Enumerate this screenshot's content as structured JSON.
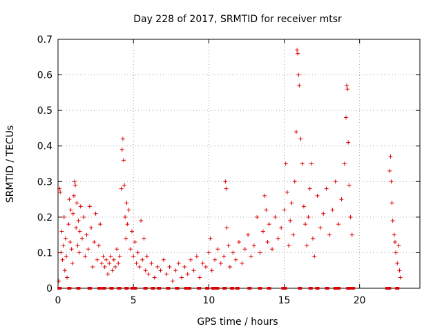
{
  "chart_data": {
    "type": "scatter",
    "title": "Day 228 of 2017, SRMTID for receiver mtsr",
    "xlabel": "GPS time / hours",
    "ylabel": "SRMTID / TECUs",
    "xlim": [
      0,
      24
    ],
    "ylim": [
      0,
      0.7
    ],
    "xticks": [
      0,
      5,
      10,
      15,
      20
    ],
    "yticks": [
      0,
      0.1,
      0.2,
      0.3,
      0.4,
      0.5,
      0.6,
      0.7
    ],
    "grid": true,
    "marker": "+",
    "color": "#dd0000",
    "series": [
      {
        "name": "SRMTID",
        "points": [
          [
            0.05,
            0.02
          ],
          [
            0.1,
            0.28
          ],
          [
            0.15,
            0.27
          ],
          [
            0.2,
            0.1
          ],
          [
            0.25,
            0.16
          ],
          [
            0.3,
            0.08
          ],
          [
            0.35,
            0.12
          ],
          [
            0.4,
            0.2
          ],
          [
            0.45,
            0.05
          ],
          [
            0.5,
            0.14
          ],
          [
            0.55,
            0.09
          ],
          [
            0.6,
            0.03
          ],
          [
            0.7,
            0.18
          ],
          [
            0.75,
            0.25
          ],
          [
            0.8,
            0.13
          ],
          [
            0.85,
            0.22
          ],
          [
            0.9,
            0.11
          ],
          [
            0.95,
            0.07
          ],
          [
            1.0,
            0.21
          ],
          [
            1.05,
            0.26
          ],
          [
            1.1,
            0.3
          ],
          [
            1.15,
            0.29
          ],
          [
            1.2,
            0.17
          ],
          [
            1.25,
            0.24
          ],
          [
            1.3,
            0.12
          ],
          [
            1.35,
            0.19
          ],
          [
            1.4,
            0.1
          ],
          [
            1.45,
            0.16
          ],
          [
            1.5,
            0.23
          ],
          [
            1.6,
            0.14
          ],
          [
            1.7,
            0.2
          ],
          [
            1.8,
            0.09
          ],
          [
            1.9,
            0.15
          ],
          [
            2.0,
            0.11
          ],
          [
            2.1,
            0.23
          ],
          [
            2.2,
            0.17
          ],
          [
            2.3,
            0.06
          ],
          [
            2.4,
            0.13
          ],
          [
            2.5,
            0.21
          ],
          [
            2.6,
            0.08
          ],
          [
            2.7,
            0.12
          ],
          [
            2.8,
            0.18
          ],
          [
            2.9,
            0.07
          ],
          [
            3.0,
            0.09
          ],
          [
            3.1,
            0.06
          ],
          [
            3.2,
            0.08
          ],
          [
            3.3,
            0.04
          ],
          [
            3.4,
            0.07
          ],
          [
            3.5,
            0.09
          ],
          [
            3.6,
            0.05
          ],
          [
            3.7,
            0.08
          ],
          [
            3.8,
            0.06
          ],
          [
            3.9,
            0.11
          ],
          [
            4.0,
            0.07
          ],
          [
            4.1,
            0.09
          ],
          [
            4.2,
            0.28
          ],
          [
            4.25,
            0.39
          ],
          [
            4.3,
            0.42
          ],
          [
            4.35,
            0.36
          ],
          [
            4.4,
            0.29
          ],
          [
            4.45,
            0.2
          ],
          [
            4.5,
            0.14
          ],
          [
            4.55,
            0.24
          ],
          [
            4.6,
            0.18
          ],
          [
            4.7,
            0.22
          ],
          [
            4.8,
            0.11
          ],
          [
            4.9,
            0.16
          ],
          [
            5.0,
            0.09
          ],
          [
            5.1,
            0.13
          ],
          [
            5.2,
            0.07
          ],
          [
            5.3,
            0.1
          ],
          [
            5.4,
            0.06
          ],
          [
            5.5,
            0.19
          ],
          [
            5.6,
            0.08
          ],
          [
            5.7,
            0.14
          ],
          [
            5.8,
            0.05
          ],
          [
            5.9,
            0.09
          ],
          [
            6.0,
            0.04
          ],
          [
            6.2,
            0.07
          ],
          [
            6.4,
            0.03
          ],
          [
            6.6,
            0.06
          ],
          [
            6.8,
            0.05
          ],
          [
            7.0,
            0.08
          ],
          [
            7.2,
            0.04
          ],
          [
            7.4,
            0.06
          ],
          [
            7.6,
            0.02
          ],
          [
            7.8,
            0.05
          ],
          [
            8.0,
            0.07
          ],
          [
            8.2,
            0.03
          ],
          [
            8.4,
            0.06
          ],
          [
            8.6,
            0.04
          ],
          [
            8.8,
            0.08
          ],
          [
            9.0,
            0.05
          ],
          [
            9.2,
            0.09
          ],
          [
            9.4,
            0.03
          ],
          [
            9.6,
            0.07
          ],
          [
            9.8,
            0.06
          ],
          [
            10.0,
            0.1
          ],
          [
            10.1,
            0.14
          ],
          [
            10.2,
            0.05
          ],
          [
            10.4,
            0.08
          ],
          [
            10.6,
            0.11
          ],
          [
            10.8,
            0.07
          ],
          [
            11.0,
            0.09
          ],
          [
            11.1,
            0.3
          ],
          [
            11.15,
            0.28
          ],
          [
            11.2,
            0.17
          ],
          [
            11.3,
            0.12
          ],
          [
            11.4,
            0.06
          ],
          [
            11.6,
            0.1
          ],
          [
            11.8,
            0.08
          ],
          [
            12.0,
            0.13
          ],
          [
            12.2,
            0.07
          ],
          [
            12.4,
            0.11
          ],
          [
            12.6,
            0.15
          ],
          [
            12.8,
            0.09
          ],
          [
            13.0,
            0.12
          ],
          [
            13.2,
            0.2
          ],
          [
            13.4,
            0.1
          ],
          [
            13.6,
            0.16
          ],
          [
            13.7,
            0.26
          ],
          [
            13.8,
            0.22
          ],
          [
            13.9,
            0.13
          ],
          [
            14.0,
            0.18
          ],
          [
            14.2,
            0.11
          ],
          [
            14.4,
            0.2
          ],
          [
            14.6,
            0.14
          ],
          [
            14.8,
            0.17
          ],
          [
            15.0,
            0.22
          ],
          [
            15.1,
            0.35
          ],
          [
            15.2,
            0.27
          ],
          [
            15.3,
            0.12
          ],
          [
            15.4,
            0.19
          ],
          [
            15.5,
            0.24
          ],
          [
            15.6,
            0.15
          ],
          [
            15.7,
            0.3
          ],
          [
            15.8,
            0.44
          ],
          [
            15.85,
            0.67
          ],
          [
            15.9,
            0.66
          ],
          [
            15.95,
            0.6
          ],
          [
            16.0,
            0.57
          ],
          [
            16.1,
            0.42
          ],
          [
            16.2,
            0.35
          ],
          [
            16.3,
            0.23
          ],
          [
            16.4,
            0.18
          ],
          [
            16.5,
            0.12
          ],
          [
            16.6,
            0.2
          ],
          [
            16.7,
            0.28
          ],
          [
            16.8,
            0.35
          ],
          [
            16.9,
            0.14
          ],
          [
            17.0,
            0.09
          ],
          [
            17.2,
            0.26
          ],
          [
            17.4,
            0.17
          ],
          [
            17.6,
            0.21
          ],
          [
            17.8,
            0.28
          ],
          [
            18.0,
            0.15
          ],
          [
            18.2,
            0.22
          ],
          [
            18.4,
            0.3
          ],
          [
            18.6,
            0.18
          ],
          [
            18.8,
            0.25
          ],
          [
            19.0,
            0.35
          ],
          [
            19.1,
            0.48
          ],
          [
            19.15,
            0.57
          ],
          [
            19.2,
            0.56
          ],
          [
            19.25,
            0.41
          ],
          [
            19.3,
            0.29
          ],
          [
            19.4,
            0.2
          ],
          [
            19.5,
            0.15
          ],
          [
            22.0,
            0.33
          ],
          [
            22.05,
            0.37
          ],
          [
            22.1,
            0.3
          ],
          [
            22.15,
            0.24
          ],
          [
            22.2,
            0.19
          ],
          [
            22.3,
            0.15
          ],
          [
            22.35,
            0.13
          ],
          [
            22.4,
            0.1
          ],
          [
            22.5,
            0.07
          ],
          [
            22.6,
            0.12
          ],
          [
            22.65,
            0.05
          ],
          [
            22.7,
            0.03
          ]
        ]
      }
    ],
    "zero_markers_x": [
      0.1,
      0.75,
      1.35,
      2.1,
      2.75,
      3.05,
      3.55,
      4.05,
      4.55,
      4.95,
      5.1,
      5.8,
      6.3,
      6.7,
      7.3,
      7.9,
      8.5,
      8.7,
      9.35,
      9.9,
      10.3,
      10.55,
      11.05,
      11.55,
      11.9,
      12.7,
      13.4,
      14.0,
      14.95,
      15.05,
      16.05,
      16.75,
      17.2,
      17.85,
      18.4,
      18.6,
      19.25,
      19.35,
      19.55,
      21.85,
      21.95,
      22.5
    ]
  }
}
